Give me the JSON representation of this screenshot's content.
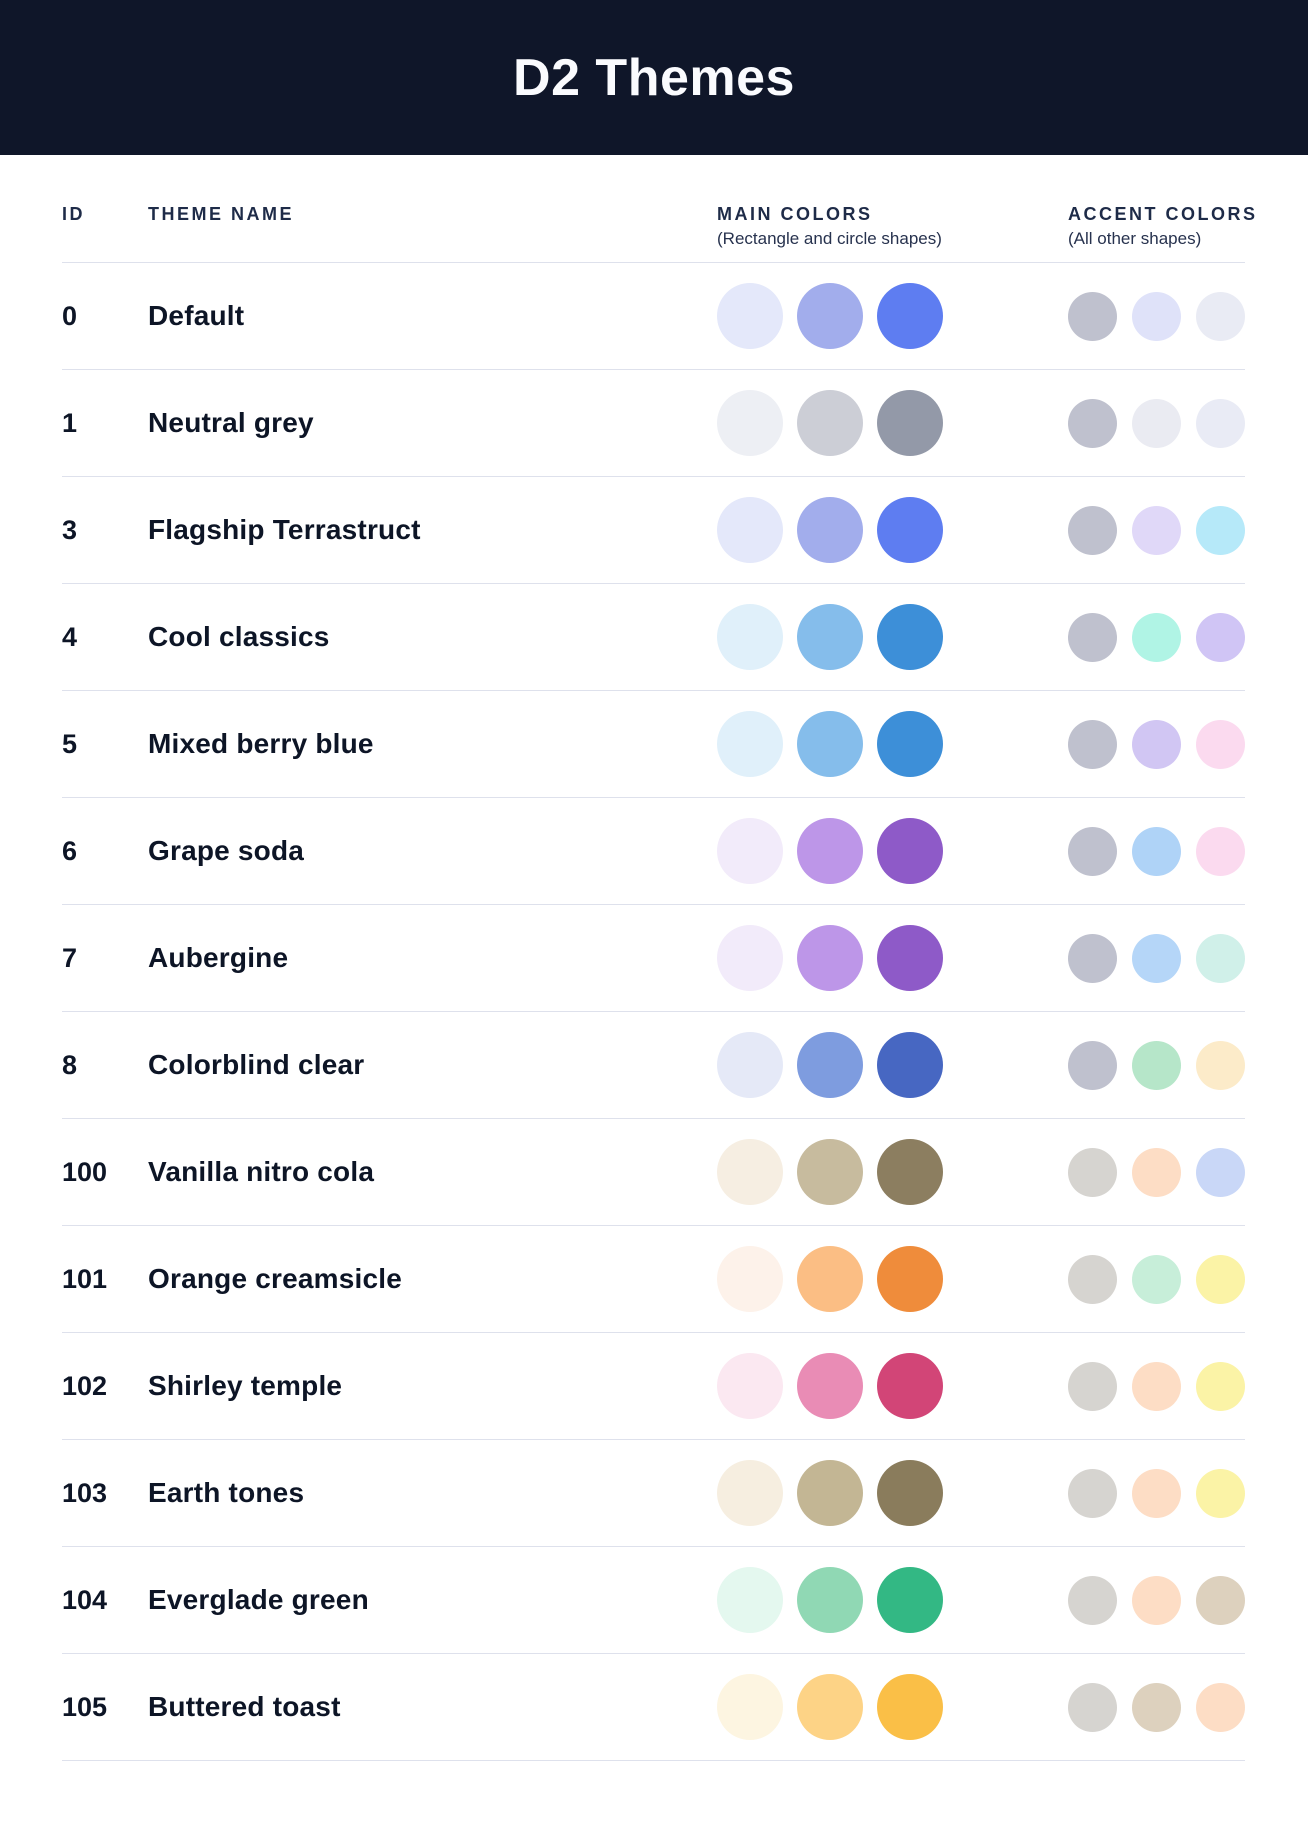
{
  "header": {
    "title": "D2 Themes"
  },
  "table": {
    "columns": {
      "id_label": "ID",
      "name_label": "THEME NAME",
      "main_label": "MAIN COLORS",
      "main_subtitle": "(Rectangle and circle shapes)",
      "accent_label": "ACCENT COLORS",
      "accent_subtitle": "(All other shapes)"
    },
    "rows": [
      {
        "id": "0",
        "name": "Default",
        "main_colors": [
          "#E4E8FA",
          "#A2ADEC",
          "#5E7DF1"
        ],
        "accent_colors": [
          "#BFC1CE",
          "#DFE2F9",
          "#E9EBF4"
        ]
      },
      {
        "id": "1",
        "name": "Neutral grey",
        "main_colors": [
          "#EDEFF4",
          "#CCCED6",
          "#9399A8"
        ],
        "accent_colors": [
          "#BFC1CE",
          "#EAEBF2",
          "#E9EBF5"
        ]
      },
      {
        "id": "3",
        "name": "Flagship Terrastruct",
        "main_colors": [
          "#E4E8FA",
          "#A2ADEC",
          "#5E7DF1"
        ],
        "accent_colors": [
          "#BFC1CE",
          "#E0D8F8",
          "#B6E9F9"
        ]
      },
      {
        "id": "4",
        "name": "Cool classics",
        "main_colors": [
          "#E0F0FA",
          "#85BDEB",
          "#3D8FD8"
        ],
        "accent_colors": [
          "#BFC1CE",
          "#B0F4E5",
          "#D0C5F5"
        ]
      },
      {
        "id": "5",
        "name": "Mixed berry blue",
        "main_colors": [
          "#E0F0FA",
          "#85BDEB",
          "#3D8FD8"
        ],
        "accent_colors": [
          "#BFC1CE",
          "#D1C6F3",
          "#FBDAEF"
        ]
      },
      {
        "id": "6",
        "name": "Grape soda",
        "main_colors": [
          "#F2EBFA",
          "#BD96E8",
          "#8E5AC8"
        ],
        "accent_colors": [
          "#BFC1CE",
          "#AFD3F7",
          "#FBDAEF"
        ]
      },
      {
        "id": "7",
        "name": "Aubergine",
        "main_colors": [
          "#F2EBFA",
          "#BD96E8",
          "#8E5AC8"
        ],
        "accent_colors": [
          "#BFC1CE",
          "#B5D6F8",
          "#D0F0E9"
        ]
      },
      {
        "id": "8",
        "name": "Colorblind clear",
        "main_colors": [
          "#E5E9F7",
          "#7E9CDF",
          "#4767C2"
        ],
        "accent_colors": [
          "#BFC1CE",
          "#B6E6C9",
          "#FCEBC9"
        ]
      },
      {
        "id": "100",
        "name": "Vanilla nitro cola",
        "main_colors": [
          "#F6EEE2",
          "#C7BB9E",
          "#8C7E60"
        ],
        "accent_colors": [
          "#D6D4D0",
          "#FDDDC5",
          "#C9D7F7"
        ]
      },
      {
        "id": "101",
        "name": "Orange creamsicle",
        "main_colors": [
          "#FDF2EA",
          "#FBBE84",
          "#EF8C3B"
        ],
        "accent_colors": [
          "#D6D4D0",
          "#C7EED9",
          "#FBF3A6"
        ]
      },
      {
        "id": "102",
        "name": "Shirley temple",
        "main_colors": [
          "#FBE8F1",
          "#E98CB5",
          "#D24577"
        ],
        "accent_colors": [
          "#D6D4D0",
          "#FDDDC5",
          "#FBF3A6"
        ]
      },
      {
        "id": "103",
        "name": "Earth tones",
        "main_colors": [
          "#F6EEE0",
          "#C3B694",
          "#8A7C5C"
        ],
        "accent_colors": [
          "#D6D4D0",
          "#FDDDC5",
          "#FBF3A6"
        ]
      },
      {
        "id": "104",
        "name": "Everglade green",
        "main_colors": [
          "#E4F8EF",
          "#90D8B4",
          "#33B884"
        ],
        "accent_colors": [
          "#D6D4D0",
          "#FDDDC5",
          "#DDD1BE"
        ]
      },
      {
        "id": "105",
        "name": "Buttered toast",
        "main_colors": [
          "#FDF5E1",
          "#FDD386",
          "#FABF47"
        ],
        "accent_colors": [
          "#D6D4D0",
          "#DDD1BE",
          "#FDDDC5"
        ]
      }
    ]
  },
  "colors": {
    "header_bg": "#0F1629",
    "header_text": "#FAFBFE",
    "column_header_text": "#1E2B48",
    "row_text": "#0D1526",
    "divider": "#DEE1EC",
    "background": "#FFFFFF"
  }
}
